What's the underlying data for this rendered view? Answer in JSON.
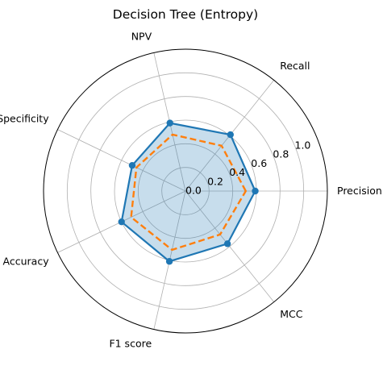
{
  "chart_data": {
    "type": "radar",
    "title": "Decision Tree (Entropy)",
    "axes": [
      "Precision",
      "Recall",
      "NPV",
      "Specificity",
      "Accuracy",
      "F1 score",
      "MCC"
    ],
    "radial_ticks": [
      "0.0",
      "0.2",
      "0.4",
      "0.6",
      "0.8",
      "1.0"
    ],
    "radial_range": [
      0,
      1.2
    ],
    "grid": true,
    "series": [
      {
        "values": [
          0.59,
          0.61,
          0.59,
          0.5,
          0.6,
          0.61,
          0.57
        ],
        "color": "#1f77b4",
        "style": "solid",
        "markers": true,
        "fill": true
      },
      {
        "values": [
          0.51,
          0.49,
          0.49,
          0.46,
          0.51,
          0.51,
          0.47
        ],
        "color": "#ff7f0e",
        "style": "dashed",
        "markers": false,
        "fill": false
      }
    ]
  }
}
